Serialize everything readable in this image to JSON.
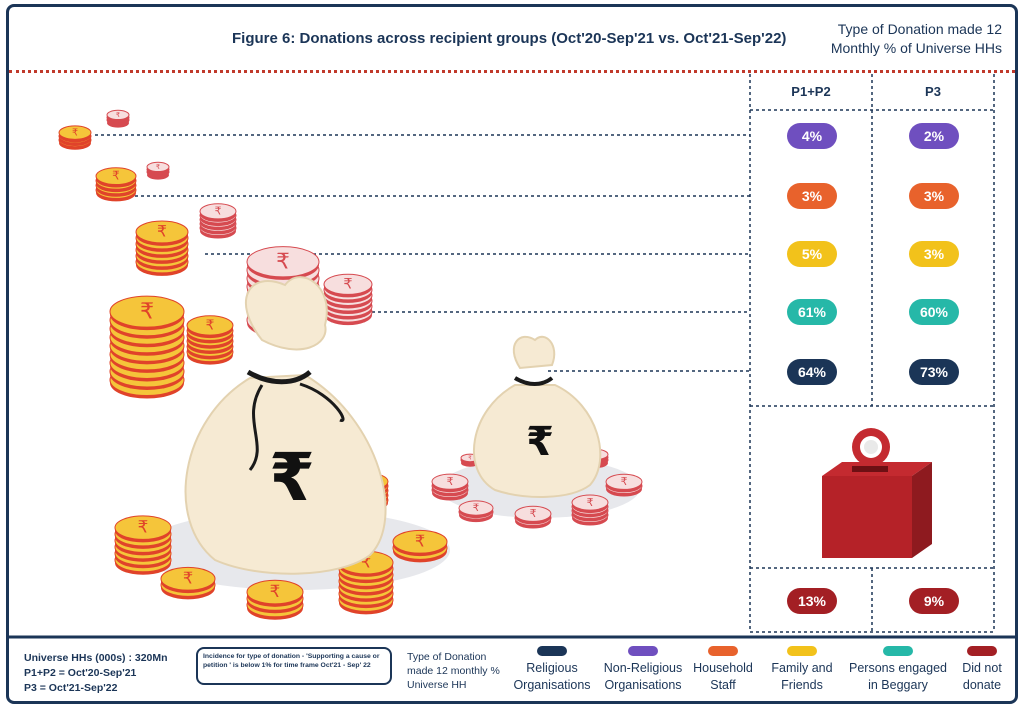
{
  "title": "Figure 6: Donations across recipient groups (Oct'20-Sep'21 vs. Oct'21-Sep'22)",
  "type_note": "Type of Donation made 12 Monthly % of Universe HHs",
  "footer": {
    "universe": "Universe HHs (000s) : 320Mn",
    "p1p2": "P1+P2 = Oct'20-Sep'21",
    "p3": "P3 = Oct'21-Sep'22",
    "note": "Incidence for type of donation - 'Supporting a cause or petition ' is below 1% for time frame Oct'21 - Sep' 22",
    "legend_title": "Type of Donation made 12 monthly % Universe HH"
  },
  "colors": {
    "navy": "#1b3557",
    "purple": "#6f4fbf",
    "orange": "#e8622c",
    "yellow": "#f2c21b",
    "teal": "#26b8a8",
    "red": "#a31f24"
  },
  "chart_data": {
    "type": "table",
    "columns": [
      "P1+P2",
      "P3"
    ],
    "rows": [
      {
        "category": "Non-Religious Organisations",
        "color": "#6f4fbf",
        "values": [
          "4%",
          "2%"
        ]
      },
      {
        "category": "Household Staff",
        "color": "#e8622c",
        "values": [
          "3%",
          "3%"
        ]
      },
      {
        "category": "Family and Friends",
        "color": "#f2c21b",
        "values": [
          "5%",
          "3%"
        ]
      },
      {
        "category": "Persons engaged in Beggary",
        "color": "#26b8a8",
        "values": [
          "61%",
          "60%"
        ]
      },
      {
        "category": "Religious Organisations",
        "color": "#1b3557",
        "values": [
          "64%",
          "73%"
        ]
      },
      {
        "category": "Did not donate",
        "color": "#a31f24",
        "values": [
          "13%",
          "9%"
        ]
      }
    ],
    "legend": [
      {
        "label": "Religious Organisations",
        "color": "#1b3557"
      },
      {
        "label": "Non-Religious Organisations",
        "color": "#6f4fbf"
      },
      {
        "label": "Household Staff",
        "color": "#e8622c"
      },
      {
        "label": "Family and Friends",
        "color": "#f2c21b"
      },
      {
        "label": "Persons engaged in Beggary",
        "color": "#26b8a8"
      },
      {
        "label": "Did not donate",
        "color": "#a31f24"
      }
    ]
  }
}
